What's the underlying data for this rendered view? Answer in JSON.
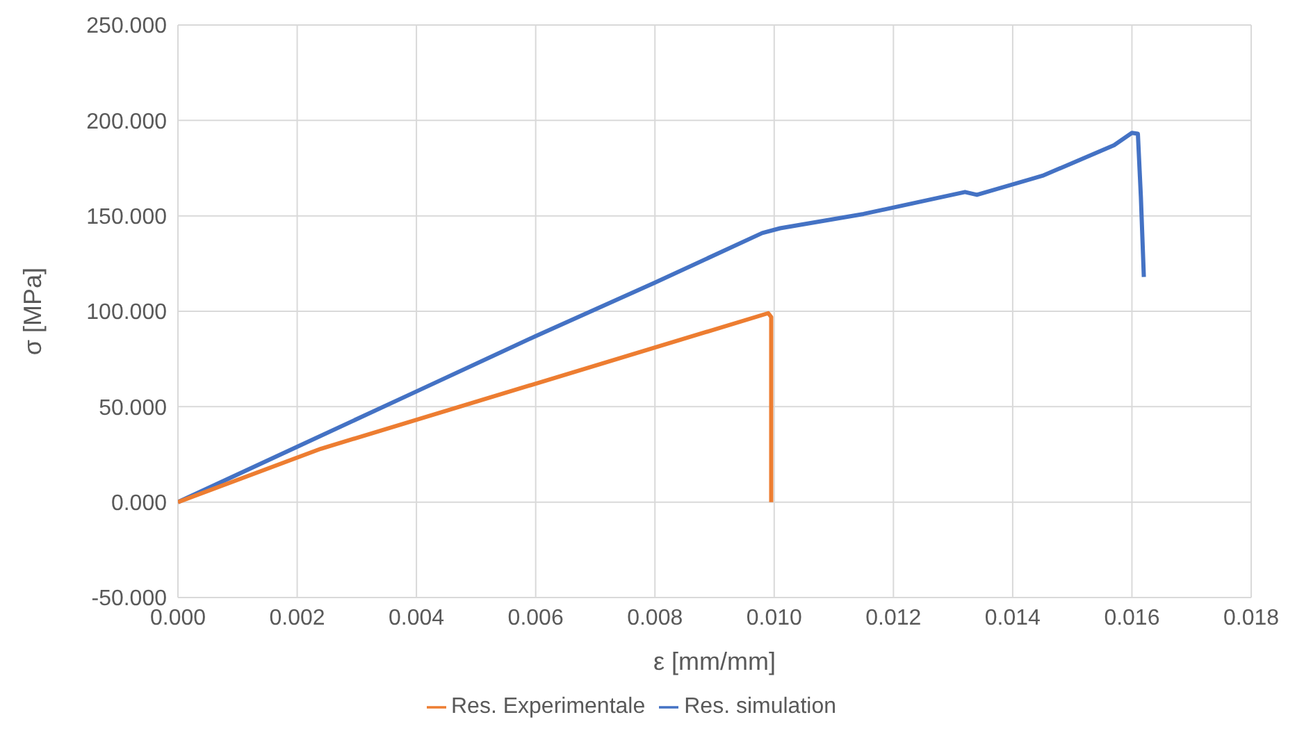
{
  "chart_data": {
    "type": "line",
    "xlabel": "ε [mm/mm]",
    "ylabel": "σ [MPa]",
    "series": [
      {
        "name": "Res. simulation",
        "color": "#4472c4",
        "x": [
          0,
          0.002,
          0.004,
          0.006,
          0.008,
          0.0098,
          0.0101,
          0.0115,
          0.0132,
          0.0134,
          0.0145,
          0.0157,
          0.016,
          0.0161,
          0.01615,
          0.0162
        ],
        "values": [
          0,
          29,
          58,
          87,
          115,
          141,
          143.5,
          151,
          162.5,
          161,
          171,
          187,
          193.5,
          193,
          160,
          118
        ]
      },
      {
        "name": "Res. Experimentale",
        "color": "#ed7d31",
        "x": [
          0,
          0.0024,
          0.0099,
          0.00995,
          0.00995
        ],
        "values": [
          0,
          28,
          99,
          97,
          0
        ]
      }
    ],
    "xlim": [
      0,
      0.018
    ],
    "xticks": [
      {
        "value": 0,
        "label": "0.000"
      },
      {
        "value": 0.002,
        "label": "0.002"
      },
      {
        "value": 0.004,
        "label": "0.004"
      },
      {
        "value": 0.006,
        "label": "0.006"
      },
      {
        "value": 0.008,
        "label": "0.008"
      },
      {
        "value": 0.01,
        "label": "0.010"
      },
      {
        "value": 0.012,
        "label": "0.012"
      },
      {
        "value": 0.014,
        "label": "0.014"
      },
      {
        "value": 0.016,
        "label": "0.016"
      },
      {
        "value": 0.018,
        "label": "0.018"
      }
    ],
    "ylim": [
      -50,
      250
    ],
    "yticks": [
      {
        "value": -50,
        "label": "-50.000"
      },
      {
        "value": 0,
        "label": "0.000"
      },
      {
        "value": 50,
        "label": "50.000"
      },
      {
        "value": 100,
        "label": "100.000"
      },
      {
        "value": 150,
        "label": "150.000"
      },
      {
        "value": 200,
        "label": "200.000"
      },
      {
        "value": 250,
        "label": "250.000"
      }
    ],
    "grid": true,
    "legend": "bottom",
    "marker": "none",
    "line_style": "solid"
  }
}
